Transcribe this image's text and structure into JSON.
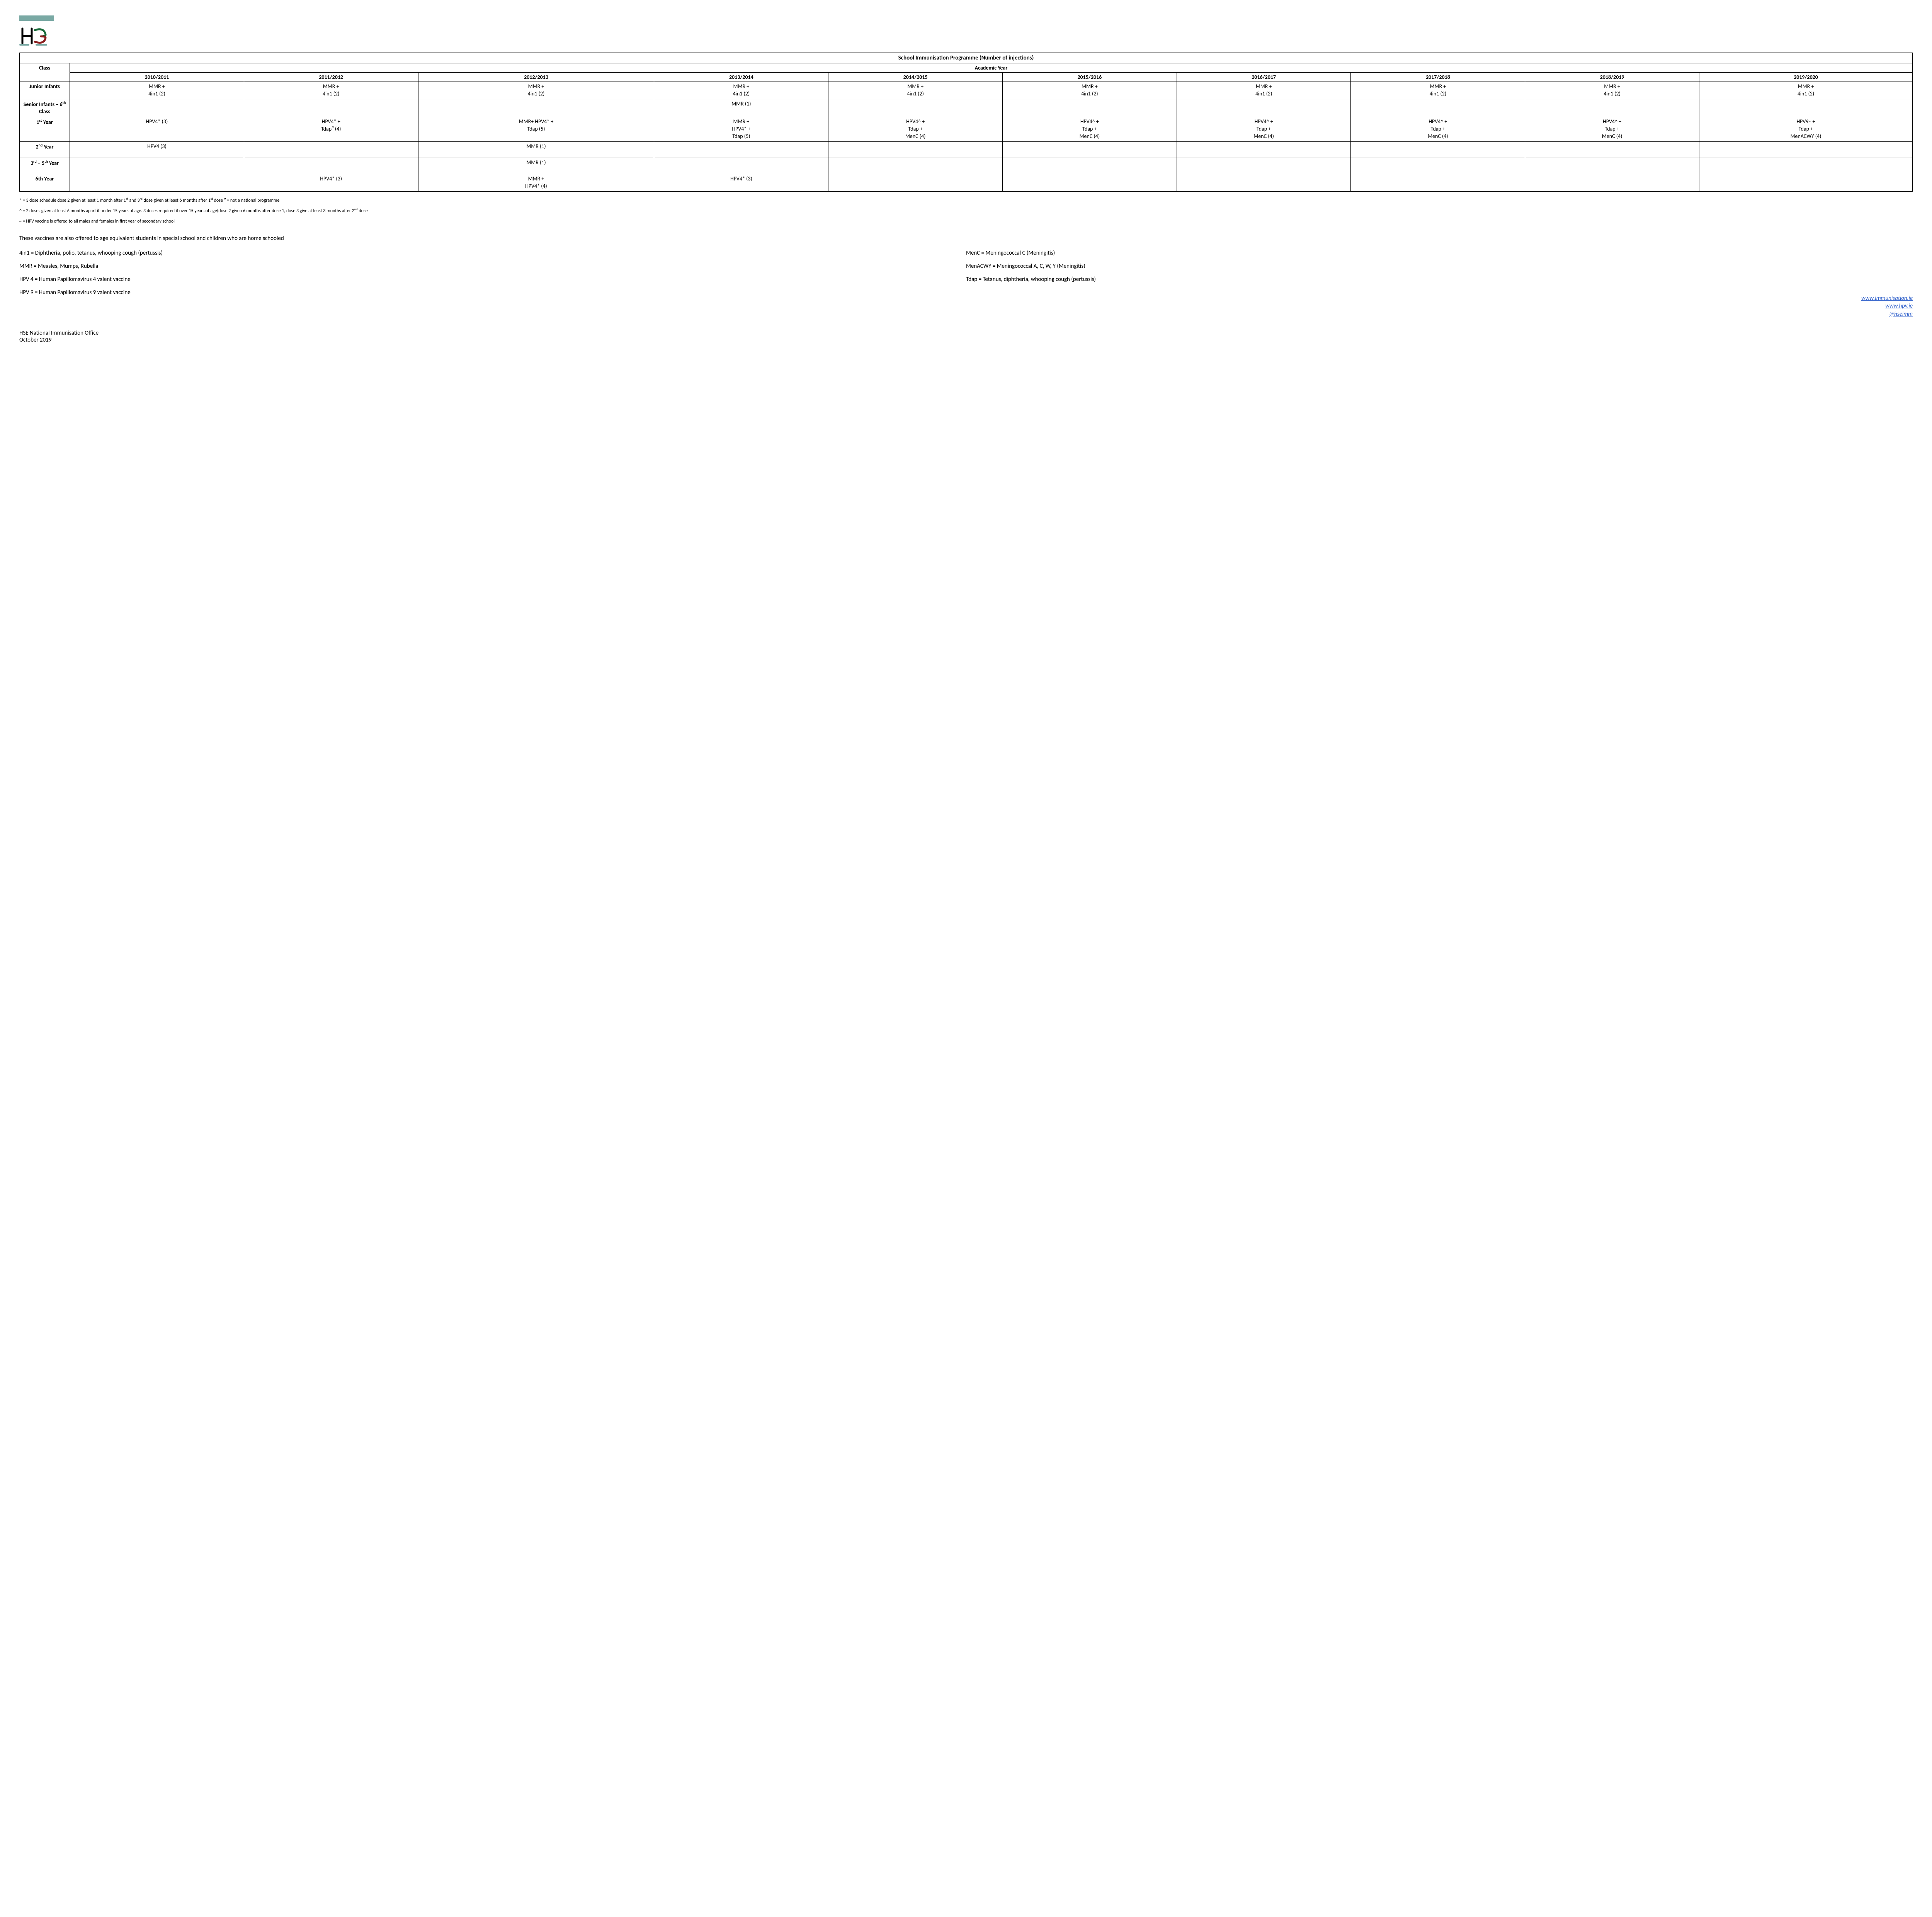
{
  "table": {
    "title": "School Immunisation Programme (Number of injections)",
    "class_header": "Class",
    "year_group_header": "Academic Year",
    "years": [
      "2010/2011",
      "2011/2012",
      "2012/2013",
      "2013/2014",
      "2014/2015",
      "2015/2016",
      "2016/2017",
      "2017/2018",
      "2018/2019",
      "2019/2020"
    ],
    "rows": [
      {
        "class": "Junior Infants",
        "cells": [
          "MMR + 4in1 (2)",
          "MMR + 4in1 (2)",
          "MMR + 4in1 (2)",
          "MMR + 4in1 (2)",
          "MMR + 4in1 (2)",
          "MMR + 4in1 (2)",
          "MMR + 4in1 (2)",
          "MMR + 4in1 (2)",
          "MMR + 4in1 (2)",
          "MMR + 4in1 (2)"
        ]
      },
      {
        "class": "Senior Infants – 6<sup>th</sup> Class",
        "cells": [
          "",
          "",
          "",
          "MMR (1)",
          "",
          "",
          "",
          "",
          "",
          ""
        ]
      },
      {
        "class": "1<sup>st</sup> Year",
        "cells": [
          "HPV4* (3)",
          "HPV4* + Tdap″ (4)",
          "MMR+ HPV4* + Tdap (5)",
          "MMR + HPV4* + Tdap (5)",
          "HPV4^ + Tdap + MenC (4)",
          "HPV4^ + Tdap + MenC (4)",
          "HPV4^ + Tdap + MenC (4)",
          "HPV4^ + Tdap + MenC (4)",
          "HPV4^ + Tdap + MenC (4)",
          "HPV9~ + Tdap + MenACWY (4)"
        ]
      },
      {
        "class": "2<sup>nd</sup> Year",
        "cells": [
          "HPV4 (3)",
          "",
          "MMR (1)",
          "",
          "",
          "",
          "",
          "",
          "",
          ""
        ]
      },
      {
        "class": "3<sup>rd</sup> – 5<sup>th</sup> Year",
        "cells": [
          "",
          "",
          "MMR (1)",
          "",
          "",
          "",
          "",
          "",
          "",
          ""
        ]
      },
      {
        "class": "6th Year",
        "cells": [
          "",
          "HPV4* (3)",
          "MMR + HPV4* (4)",
          "HPV4* (3)",
          "",
          "",
          "",
          "",
          "",
          ""
        ]
      }
    ]
  },
  "footnotes": {
    "f1_a": "* = 3 dose schedule dose 2 given at least 1 month after 1",
    "f1_b": " and 3",
    "f1_c": " dose given at least 6 months after 1",
    "f1_d": " dose ″ = not a national programme",
    "f2_a": "^ = 2 doses given at least 6 months apart if under 15 years of age. 3 doses required if over 15 years of age(dose 2 given 6 months after dose 1, dose 3 give at least 3 months after 2",
    "f2_b": " dose",
    "f3": "~ = HPV vaccine is offered to all males and females in first year of secondary school"
  },
  "body_text": "These vaccines are also offered to age equivalent students in special school and children who are home schooled",
  "definitions": {
    "left": [
      "4in1 = Diphtheria, polio, tetanus, whooping cough (pertussis)",
      "MMR = Measles, Mumps, Rubella",
      "HPV 4 = Human Papillomavirus 4 valent vaccine",
      "HPV 9 = Human Papillomavirus 9 valent vaccine"
    ],
    "right": [
      "MenC = Meningococcal C (Meningitis)",
      "MenACWY = Meningococcal A, C, W, Y (Meningitis)",
      "Tdap = Tetanus, diphtheria, whooping cough (pertussis)"
    ]
  },
  "links": {
    "l1": "www.immunisation.ie",
    "l2": "www.hpv.ie",
    "l3": "@hseimm"
  },
  "footer": {
    "line1": "HSE National Immunisation Office",
    "line2": "October 2019"
  }
}
